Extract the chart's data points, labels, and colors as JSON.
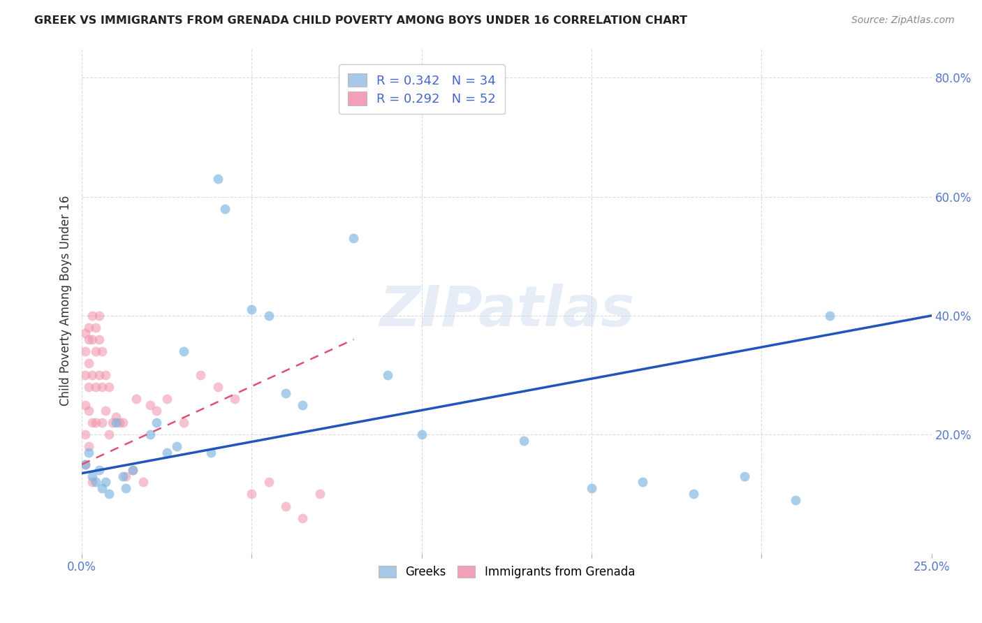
{
  "title": "GREEK VS IMMIGRANTS FROM GRENADA CHILD POVERTY AMONG BOYS UNDER 16 CORRELATION CHART",
  "source": "Source: ZipAtlas.com",
  "ylabel": "Child Poverty Among Boys Under 16",
  "xlim": [
    0.0,
    0.25
  ],
  "ylim": [
    0.0,
    0.85
  ],
  "background_color": "#ffffff",
  "grid_color": "#cccccc",
  "greek_color": "#7ab4e0",
  "grenada_color": "#f090a8",
  "greek_line_color": "#2255bb",
  "grenada_line_color": "#e05070",
  "watermark_text": "ZIPatlas",
  "greek_x": [
    0.001,
    0.002,
    0.003,
    0.004,
    0.005,
    0.006,
    0.007,
    0.008,
    0.01,
    0.012,
    0.013,
    0.015,
    0.02,
    0.022,
    0.025,
    0.028,
    0.03,
    0.038,
    0.04,
    0.042,
    0.05,
    0.055,
    0.06,
    0.065,
    0.08,
    0.09,
    0.1,
    0.13,
    0.15,
    0.165,
    0.18,
    0.195,
    0.21,
    0.22
  ],
  "greek_y": [
    0.15,
    0.17,
    0.13,
    0.12,
    0.14,
    0.11,
    0.12,
    0.1,
    0.22,
    0.13,
    0.11,
    0.14,
    0.2,
    0.22,
    0.17,
    0.18,
    0.34,
    0.17,
    0.63,
    0.58,
    0.41,
    0.4,
    0.27,
    0.25,
    0.53,
    0.3,
    0.2,
    0.19,
    0.11,
    0.12,
    0.1,
    0.13,
    0.09,
    0.4
  ],
  "grenada_x": [
    0.001,
    0.001,
    0.001,
    0.001,
    0.001,
    0.001,
    0.002,
    0.002,
    0.002,
    0.002,
    0.002,
    0.002,
    0.003,
    0.003,
    0.003,
    0.003,
    0.003,
    0.004,
    0.004,
    0.004,
    0.004,
    0.005,
    0.005,
    0.005,
    0.006,
    0.006,
    0.006,
    0.007,
    0.007,
    0.008,
    0.008,
    0.009,
    0.01,
    0.011,
    0.012,
    0.013,
    0.015,
    0.016,
    0.018,
    0.02,
    0.022,
    0.025,
    0.03,
    0.035,
    0.04,
    0.045,
    0.05,
    0.055,
    0.06,
    0.065,
    0.07
  ],
  "grenada_y": [
    0.37,
    0.34,
    0.3,
    0.25,
    0.2,
    0.15,
    0.38,
    0.36,
    0.32,
    0.28,
    0.24,
    0.18,
    0.4,
    0.36,
    0.3,
    0.22,
    0.12,
    0.38,
    0.34,
    0.28,
    0.22,
    0.4,
    0.36,
    0.3,
    0.34,
    0.28,
    0.22,
    0.3,
    0.24,
    0.28,
    0.2,
    0.22,
    0.23,
    0.22,
    0.22,
    0.13,
    0.14,
    0.26,
    0.12,
    0.25,
    0.24,
    0.26,
    0.22,
    0.3,
    0.28,
    0.26,
    0.1,
    0.12,
    0.08,
    0.06,
    0.1
  ],
  "grenada_line_x0": 0.0,
  "grenada_line_y0": 0.15,
  "grenada_line_x1": 0.08,
  "grenada_line_y1": 0.36,
  "greek_line_x0": 0.0,
  "greek_line_y0": 0.135,
  "greek_line_x1": 0.25,
  "greek_line_y1": 0.4
}
